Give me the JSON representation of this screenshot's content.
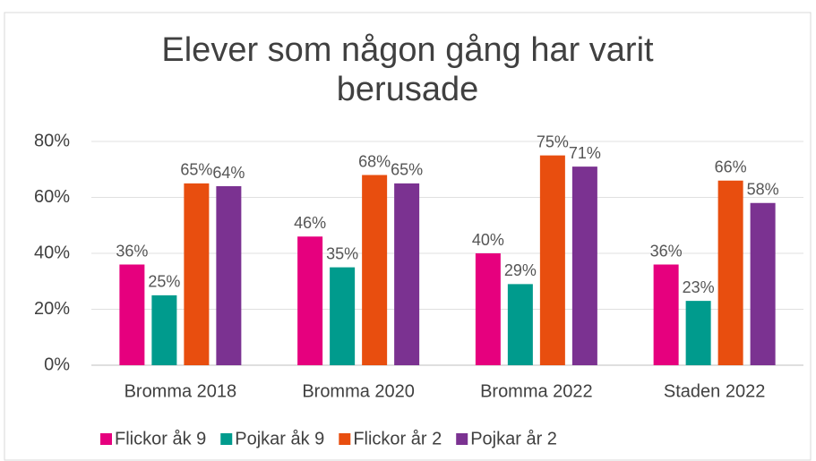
{
  "chart_data": {
    "type": "bar",
    "title": "Elever som någon gång har varit berusade",
    "categories": [
      "Bromma 2018",
      "Bromma 2020",
      "Bromma 2022",
      "Staden 2022"
    ],
    "series": [
      {
        "name": "Flickor åk 9",
        "color": "#e6007e",
        "values": [
          36,
          46,
          40,
          36
        ],
        "value_labels": [
          "36%",
          "46%",
          "40%",
          "36%"
        ]
      },
      {
        "name": "Pojkar åk 9",
        "color": "#009b8d",
        "values": [
          25,
          35,
          29,
          23
        ],
        "value_labels": [
          "25%",
          "35%",
          "29%",
          "23%"
        ]
      },
      {
        "name": "Flickor år 2",
        "color": "#e84e0f",
        "values": [
          65,
          68,
          75,
          66
        ],
        "value_labels": [
          "65%",
          "68%",
          "75%",
          "66%"
        ]
      },
      {
        "name": "Pojkar år 2",
        "color": "#7b3291",
        "values": [
          64,
          65,
          71,
          58
        ],
        "value_labels": [
          "64%",
          "65%",
          "71%",
          "58%"
        ]
      }
    ],
    "ylim": [
      0,
      80
    ],
    "yticks": [
      {
        "value": 0,
        "label": "0%"
      },
      {
        "value": 20,
        "label": "20%"
      },
      {
        "value": 40,
        "label": "40%"
      },
      {
        "value": 60,
        "label": "60%"
      },
      {
        "value": 80,
        "label": "80%"
      }
    ],
    "grid": true,
    "legend": "bottom"
  }
}
